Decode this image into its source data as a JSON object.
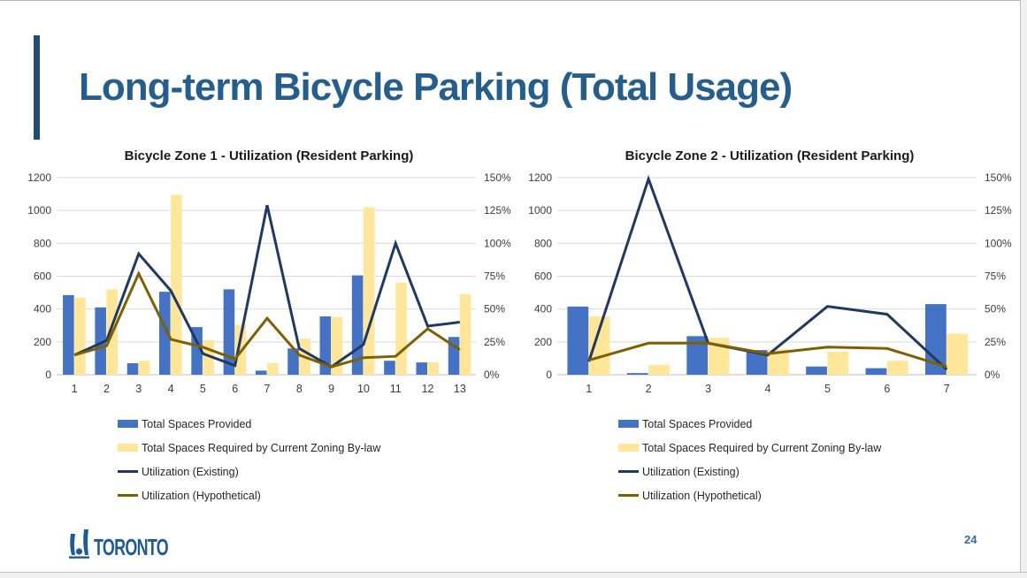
{
  "slide": {
    "title": "Long-term Bicycle Parking (Total Usage)",
    "title_color": "#235E8F",
    "accent_bar_color": "#1F4E79"
  },
  "footer": {
    "logo_text": "TORONTO",
    "logo_color": "#1C5B99",
    "page_number": "24"
  },
  "chart_data": [
    {
      "type": "bar",
      "subtype": "dual-axis bar + line combo",
      "title": "Bicycle Zone 1 - Utilization (Resident Parking)",
      "categories": [
        "1",
        "2",
        "3",
        "4",
        "5",
        "6",
        "7",
        "8",
        "9",
        "10",
        "11",
        "12",
        "13"
      ],
      "left_axis": {
        "min": 0,
        "max": 1200,
        "ticks": [
          "0",
          "200",
          "400",
          "600",
          "800",
          "1000",
          "1200"
        ]
      },
      "right_axis": {
        "min": "0%",
        "max": "150%",
        "ticks": [
          "0%",
          "25%",
          "50%",
          "75%",
          "100%",
          "125%",
          "150%"
        ]
      },
      "grid": true,
      "legend_position": "bottom-left",
      "series": [
        {
          "name": "Total Spaces Provided",
          "type": "bar",
          "axis": "left",
          "color": "#4472C4",
          "values": [
            485,
            410,
            70,
            505,
            290,
            520,
            25,
            160,
            355,
            605,
            85,
            75,
            230
          ]
        },
        {
          "name": "Total Spaces Required by Current Zoning By-law",
          "type": "bar",
          "axis": "left",
          "color": "#FFE699",
          "values": [
            470,
            520,
            85,
            1095,
            210,
            305,
            70,
            220,
            350,
            1020,
            560,
            75,
            490
          ]
        },
        {
          "name": "Utilization (Existing)",
          "type": "line",
          "axis": "right",
          "color": "#1F3864",
          "values_pct": [
            15,
            26,
            92,
            64,
            16,
            7,
            129,
            20,
            6,
            23,
            100,
            37,
            40
          ]
        },
        {
          "name": "Utilization (Hypothetical)",
          "type": "line",
          "axis": "right",
          "color": "#7F6000",
          "values_pct": [
            15,
            22,
            77,
            27,
            21,
            12,
            43,
            15,
            6,
            13,
            14,
            35,
            19
          ]
        }
      ]
    },
    {
      "type": "bar",
      "subtype": "dual-axis bar + line combo",
      "title": "Bicycle Zone 2 - Utilization (Resident Parking)",
      "categories": [
        "1",
        "2",
        "3",
        "4",
        "5",
        "6",
        "7"
      ],
      "left_axis": {
        "min": 0,
        "max": 1200,
        "ticks": [
          "0",
          "200",
          "400",
          "600",
          "800",
          "1000",
          "1200"
        ]
      },
      "right_axis": {
        "min": "0%",
        "max": "150%",
        "ticks": [
          "0%",
          "25%",
          "50%",
          "75%",
          "100%",
          "125%",
          "150%"
        ]
      },
      "grid": true,
      "legend_position": "bottom-left",
      "series": [
        {
          "name": "Total Spaces Provided",
          "type": "bar",
          "axis": "left",
          "color": "#4472C4",
          "values": [
            415,
            10,
            235,
            150,
            50,
            40,
            430
          ]
        },
        {
          "name": "Total Spaces Required by Current Zoning By-law",
          "type": "bar",
          "axis": "left",
          "color": "#FFE699",
          "values": [
            355,
            60,
            225,
            155,
            140,
            85,
            250
          ]
        },
        {
          "name": "Utilization (Existing)",
          "type": "line",
          "axis": "right",
          "color": "#1F3864",
          "values_pct": [
            10,
            149,
            24,
            15,
            52,
            46,
            4
          ]
        },
        {
          "name": "Utilization (Hypothetical)",
          "type": "line",
          "axis": "right",
          "color": "#7F6000",
          "values_pct": [
            11,
            24,
            24,
            16,
            21,
            20,
            6
          ]
        }
      ]
    }
  ]
}
